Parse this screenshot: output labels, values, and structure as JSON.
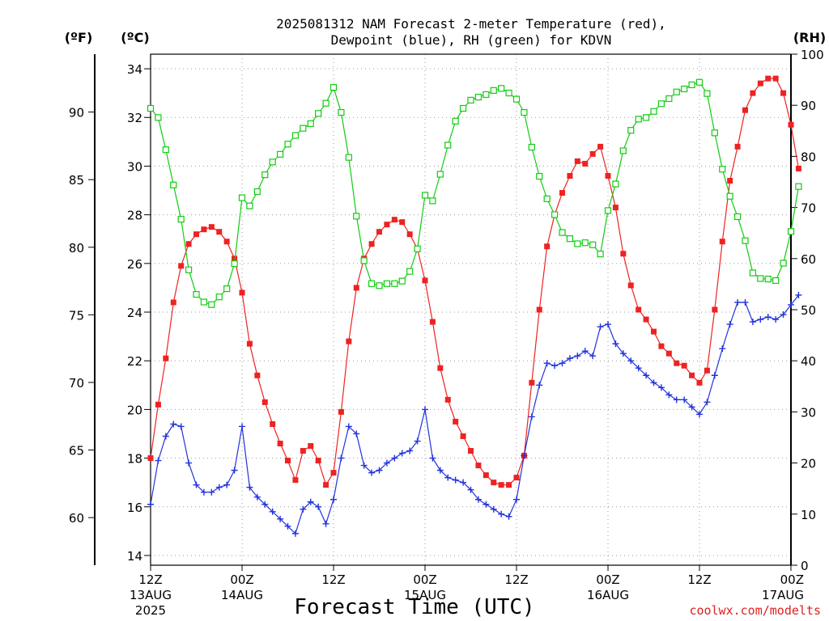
{
  "chart_data": {
    "type": "line",
    "title": [
      "2025081312 NAM Forecast 2-meter Temperature (red),",
      "Dewpoint (blue), RH (green) for KDVN"
    ],
    "xlabel": "Forecast Time (UTC)",
    "credit": "coolwx.com/modelts",
    "units": {
      "fahrenheit": "(ºF)",
      "celsius": "(ºC)",
      "rh": "(RH)"
    },
    "x_hours_range": [
      0,
      84
    ],
    "x_ticks": [
      {
        "h": 0,
        "label": "12Z",
        "sub": "13AUG",
        "year": "2025"
      },
      {
        "h": 12,
        "label": "00Z",
        "sub": "14AUG"
      },
      {
        "h": 24,
        "label": "12Z"
      },
      {
        "h": 36,
        "label": "00Z",
        "sub": "15AUG"
      },
      {
        "h": 48,
        "label": "12Z"
      },
      {
        "h": 60,
        "label": "00Z",
        "sub": "16AUG"
      },
      {
        "h": 72,
        "label": "12Z"
      },
      {
        "h": 84,
        "label": "00Z",
        "sub": "17AUG"
      }
    ],
    "y_celsius": {
      "range": [
        13.6,
        34.6
      ],
      "ticks": [
        14,
        16,
        18,
        20,
        22,
        24,
        26,
        28,
        30,
        32,
        34
      ]
    },
    "y_fahrenheit": {
      "ticks": [
        60,
        65,
        70,
        75,
        80,
        85,
        90
      ]
    },
    "y_rh": {
      "range": [
        0,
        100
      ],
      "ticks": [
        0,
        10,
        20,
        30,
        40,
        50,
        60,
        70,
        80,
        90,
        100
      ]
    },
    "grid": true,
    "colors": {
      "temperature": "#ee2222",
      "dewpoint": "#2233dd",
      "rh": "#11cc11"
    },
    "series": [
      {
        "name": "Temperature",
        "marker": "square",
        "values": [
          18.0,
          20.2,
          22.1,
          24.4,
          25.9,
          26.8,
          27.2,
          27.4,
          27.5,
          27.3,
          26.9,
          26.2,
          24.8,
          22.7,
          21.4,
          20.3,
          19.4,
          18.6,
          17.9,
          17.1,
          18.3,
          18.5,
          17.9,
          16.9,
          17.4,
          19.9,
          22.8,
          25.0,
          26.2,
          26.8,
          27.3,
          27.6,
          27.8,
          27.7,
          27.2,
          26.6,
          25.3,
          23.6,
          21.7,
          20.4,
          19.5,
          18.9,
          18.3,
          17.7,
          17.3,
          17.0,
          16.9,
          16.9,
          17.2,
          18.1,
          21.1,
          24.1,
          26.7,
          28.0,
          28.9,
          29.6,
          30.2,
          30.1,
          30.5,
          30.8,
          29.6,
          28.3,
          26.4,
          25.1,
          24.1,
          23.7,
          23.2,
          22.6,
          22.3,
          21.9,
          21.8,
          21.4,
          21.1,
          21.6,
          24.1,
          26.9,
          29.4,
          30.8,
          32.3,
          33.0,
          33.4,
          33.6,
          33.6,
          33.0,
          31.7,
          29.9
        ]
      },
      {
        "name": "Dewpoint",
        "marker": "plus",
        "values": [
          16.1,
          17.9,
          18.9,
          19.4,
          19.3,
          17.8,
          16.9,
          16.6,
          16.6,
          16.8,
          16.9,
          17.5,
          19.3,
          16.8,
          16.4,
          16.1,
          15.8,
          15.5,
          15.2,
          14.9,
          15.9,
          16.2,
          16.0,
          15.3,
          16.3,
          18.0,
          19.3,
          19.0,
          17.7,
          17.4,
          17.5,
          17.8,
          18.0,
          18.2,
          18.3,
          18.7,
          20.0,
          18.0,
          17.5,
          17.2,
          17.1,
          17.0,
          16.7,
          16.3,
          16.1,
          15.9,
          15.7,
          15.6,
          16.3,
          18.1,
          19.7,
          21.0,
          21.9,
          21.8,
          21.9,
          22.1,
          22.2,
          22.4,
          22.2,
          23.4,
          23.5,
          22.7,
          22.3,
          22.0,
          21.7,
          21.4,
          21.1,
          20.9,
          20.6,
          20.4,
          20.4,
          20.1,
          19.8,
          20.3,
          21.4,
          22.5,
          23.5,
          24.4,
          24.4,
          23.6,
          23.7,
          23.8,
          23.7,
          23.9,
          24.3,
          24.7
        ]
      },
      {
        "name": "RH",
        "marker": "open-square",
        "values": [
          89.4,
          87.6,
          81.3,
          74.4,
          67.7,
          57.8,
          53.0,
          51.5,
          51.0,
          52.5,
          54.1,
          59.0,
          71.9,
          70.3,
          73.1,
          76.4,
          78.9,
          80.4,
          82.4,
          84.1,
          85.5,
          86.4,
          88.4,
          90.4,
          93.5,
          88.6,
          79.8,
          68.3,
          59.6,
          55.1,
          54.7,
          55.1,
          55.1,
          55.6,
          57.5,
          61.9,
          72.4,
          71.3,
          76.5,
          82.2,
          86.9,
          89.4,
          91.0,
          91.6,
          92.1,
          92.9,
          93.3,
          92.4,
          91.2,
          88.6,
          81.8,
          76.1,
          71.7,
          68.6,
          65.1,
          63.9,
          62.9,
          63.1,
          62.7,
          60.9,
          69.4,
          74.6,
          81.1,
          85.1,
          87.3,
          87.6,
          88.8,
          90.3,
          91.3,
          92.6,
          93.2,
          94.0,
          94.5,
          92.3,
          84.6,
          77.5,
          72.2,
          68.2,
          63.5,
          57.2,
          56.1,
          56.0,
          55.7,
          59.1,
          65.3,
          74.1
        ]
      }
    ]
  }
}
